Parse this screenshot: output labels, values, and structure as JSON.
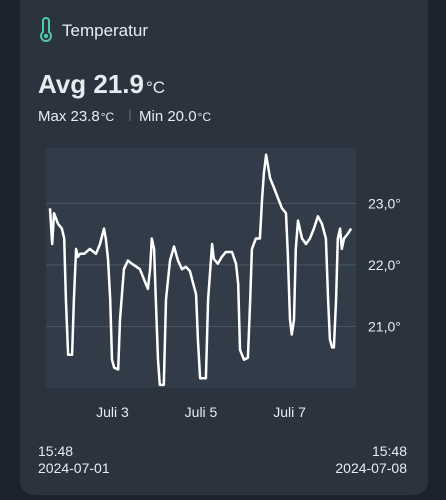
{
  "header": {
    "title": "Temperatur",
    "avg": "Avg 21.9",
    "avg_unit": "°C",
    "max": "Max 23.8",
    "max_unit": "°C",
    "min": "Min 20.0",
    "min_unit": "°C"
  },
  "footer": {
    "start_time": "15:48",
    "start_date": "2024-07-01",
    "end_time": "15:48",
    "end_date": "2024-07-08"
  },
  "chart_data": {
    "type": "line",
    "color": "#ffffff",
    "grid": true,
    "xlim": [
      1.5,
      8.5
    ],
    "ylim": [
      20.0,
      23.9
    ],
    "xticks": [
      {
        "value": 3,
        "label": "Juli 3"
      },
      {
        "value": 5,
        "label": "Juli 5"
      },
      {
        "value": 7,
        "label": "Juli 7"
      }
    ],
    "yticks": [
      {
        "value": 21,
        "label": "21,0°"
      },
      {
        "value": 22,
        "label": "22,0°"
      },
      {
        "value": 23,
        "label": "23,0°"
      }
    ],
    "x": [
      1.59,
      1.64,
      1.68,
      1.77,
      1.86,
      1.91,
      1.95,
      2.0,
      2.09,
      2.13,
      2.18,
      2.22,
      2.27,
      2.36,
      2.49,
      2.63,
      2.72,
      2.81,
      2.85,
      2.9,
      2.95,
      2.99,
      3.04,
      3.13,
      3.17,
      3.26,
      3.35,
      3.44,
      3.62,
      3.71,
      3.8,
      3.85,
      3.89,
      3.94,
      3.98,
      4.03,
      4.07,
      4.16,
      4.21,
      4.3,
      4.39,
      4.48,
      4.57,
      4.66,
      4.75,
      4.89,
      4.93,
      4.98,
      5.11,
      5.16,
      5.25,
      5.29,
      5.38,
      5.47,
      5.56,
      5.7,
      5.79,
      5.84,
      5.88,
      5.97,
      6.06,
      6.11,
      6.15,
      6.24,
      6.33,
      6.38,
      6.42,
      6.47,
      6.56,
      6.65,
      6.74,
      6.83,
      6.92,
      6.96,
      7.01,
      7.05,
      7.1,
      7.14,
      7.19,
      7.28,
      7.37,
      7.46,
      7.55,
      7.64,
      7.73,
      7.82,
      7.87,
      7.91,
      7.96,
      8.0,
      8.05,
      8.09,
      8.14,
      8.18,
      8.23,
      8.32,
      8.39
    ],
    "series": [
      {
        "name": "Temperatur",
        "color": "#ffffff",
        "values": [
          22.92,
          22.34,
          22.84,
          22.67,
          22.59,
          22.43,
          21.44,
          20.54,
          20.54,
          21.44,
          22.26,
          22.13,
          22.18,
          22.18,
          22.26,
          22.18,
          22.34,
          22.59,
          22.43,
          22.1,
          21.44,
          20.46,
          20.33,
          20.3,
          21.11,
          21.93,
          22.07,
          22.02,
          21.93,
          21.77,
          21.61,
          21.93,
          22.43,
          22.26,
          21.44,
          20.46,
          20.05,
          20.05,
          21.44,
          22.07,
          22.3,
          22.07,
          21.93,
          21.97,
          21.9,
          21.52,
          20.79,
          20.16,
          20.16,
          21.44,
          22.34,
          22.1,
          22.02,
          22.13,
          22.21,
          22.21,
          22.02,
          21.69,
          20.62,
          20.46,
          20.49,
          21.44,
          22.26,
          22.43,
          22.43,
          23.08,
          23.49,
          23.79,
          23.41,
          23.25,
          23.08,
          22.92,
          22.84,
          22.18,
          21.11,
          20.87,
          21.11,
          22.26,
          22.72,
          22.43,
          22.34,
          22.43,
          22.59,
          22.79,
          22.67,
          22.43,
          21.44,
          20.79,
          20.66,
          20.66,
          21.44,
          22.43,
          22.59,
          22.26,
          22.43,
          22.51,
          22.59
        ]
      }
    ]
  }
}
